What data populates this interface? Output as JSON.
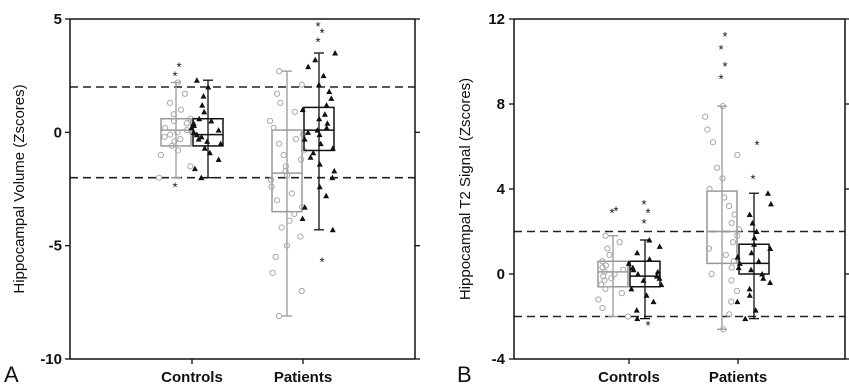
{
  "chart_data": [
    {
      "panel_label": "A",
      "type": "box",
      "ylabel": "Hippocampal Volume (Zscores)",
      "ylim": [
        -10,
        5
      ],
      "yticks": [
        -10,
        -5,
        0,
        5
      ],
      "reference_lines": [
        2,
        -2
      ],
      "categories": [
        "Controls",
        "Patients"
      ],
      "groups": [
        {
          "category": "Controls",
          "boxes": [
            {
              "marker": "circle",
              "color": "#aaaaaa",
              "q1": -0.6,
              "median": 0.1,
              "q3": 0.6,
              "whisker_low": -2.0,
              "whisker_high": 2.2,
              "outliers_high": [
                2.5,
                2.9
              ],
              "outliers_low": [
                -2.4
              ],
              "points": [
                -2.0,
                -1.5,
                -1.0,
                -0.8,
                -0.6,
                -0.4,
                -0.3,
                -0.2,
                -0.1,
                0.0,
                0.0,
                0.1,
                0.2,
                0.3,
                0.4,
                0.5,
                0.6,
                0.8,
                1.0,
                1.3,
                1.7,
                2.2
              ]
            },
            {
              "marker": "triangle",
              "color": "#111111",
              "q1": -0.6,
              "median": -0.1,
              "q3": 0.6,
              "whisker_low": -2.0,
              "whisker_high": 2.3,
              "outliers_high": [],
              "outliers_low": [],
              "points": [
                -2.0,
                -1.6,
                -1.2,
                -0.9,
                -0.7,
                -0.5,
                -0.4,
                -0.3,
                -0.2,
                -0.1,
                -0.1,
                0.0,
                0.1,
                0.2,
                0.3,
                0.4,
                0.5,
                0.6,
                0.9,
                1.2,
                1.6,
                2.0,
                2.3
              ]
            }
          ]
        },
        {
          "category": "Patients",
          "boxes": [
            {
              "marker": "circle",
              "color": "#aaaaaa",
              "q1": -3.5,
              "median": -1.8,
              "q3": 0.1,
              "whisker_low": -8.1,
              "whisker_high": 2.7,
              "outliers_high": [],
              "outliers_low": [],
              "points": [
                -8.1,
                -7.0,
                -6.2,
                -5.5,
                -5.0,
                -4.6,
                -4.2,
                -3.9,
                -3.6,
                -3.3,
                -3.0,
                -2.7,
                -2.4,
                -2.1,
                -1.9,
                -1.7,
                -1.5,
                -1.2,
                -1.0,
                -0.8,
                -0.5,
                -0.3,
                -0.1,
                0.2,
                0.5,
                0.9,
                1.3,
                1.7,
                2.1,
                2.7
              ]
            },
            {
              "marker": "triangle",
              "color": "#111111",
              "q1": -0.8,
              "median": 0.1,
              "q3": 1.1,
              "whisker_low": -4.3,
              "whisker_high": 3.5,
              "outliers_high": [
                4.0,
                4.4,
                4.7
              ],
              "outliers_low": [
                -5.7
              ],
              "points": [
                -4.3,
                -3.8,
                -3.3,
                -2.8,
                -2.4,
                -2.0,
                -1.7,
                -1.4,
                -1.1,
                -0.9,
                -0.7,
                -0.5,
                -0.3,
                -0.1,
                0.0,
                0.1,
                0.2,
                0.4,
                0.6,
                0.8,
                1.0,
                1.2,
                1.5,
                1.8,
                2.1,
                2.5,
                2.9,
                3.2,
                3.5
              ]
            }
          ]
        }
      ]
    },
    {
      "panel_label": "B",
      "type": "box",
      "ylabel": "Hippocampal T2 Signal (Zscores)",
      "ylim": [
        -4,
        12
      ],
      "yticks": [
        -4,
        0,
        4,
        8,
        12
      ],
      "reference_lines": [
        2,
        -2
      ],
      "categories": [
        "Controls",
        "Patients"
      ],
      "groups": [
        {
          "category": "Controls",
          "boxes": [
            {
              "marker": "circle",
              "color": "#aaaaaa",
              "q1": -0.6,
              "median": 0.1,
              "q3": 0.6,
              "whisker_low": -2.0,
              "whisker_high": 1.8,
              "outliers_high": [
                2.9,
                3.0
              ],
              "outliers_low": [],
              "points": [
                -2.0,
                -1.6,
                -1.2,
                -0.9,
                -0.7,
                -0.5,
                -0.3,
                -0.2,
                -0.1,
                0.0,
                0.1,
                0.2,
                0.3,
                0.4,
                0.6,
                0.9,
                1.2,
                1.5,
                1.8
              ]
            },
            {
              "marker": "triangle",
              "color": "#111111",
              "q1": -0.6,
              "median": -0.1,
              "q3": 0.6,
              "whisker_low": -2.1,
              "whisker_high": 1.6,
              "outliers_high": [
                2.4,
                2.9,
                3.3
              ],
              "outliers_low": [
                -2.4
              ],
              "points": [
                -2.1,
                -1.7,
                -1.3,
                -1.0,
                -0.7,
                -0.5,
                -0.3,
                -0.2,
                -0.1,
                0.0,
                0.1,
                0.2,
                0.3,
                0.5,
                0.7,
                1.0,
                1.3,
                1.6
              ]
            }
          ]
        },
        {
          "category": "Patients",
          "boxes": [
            {
              "marker": "circle",
              "color": "#aaaaaa",
              "q1": 0.5,
              "median": 2.0,
              "q3": 3.9,
              "whisker_low": -2.6,
              "whisker_high": 7.9,
              "outliers_high": [
                9.2,
                9.8,
                10.6,
                11.2
              ],
              "outliers_low": [],
              "points": [
                -2.6,
                -1.9,
                -1.3,
                -0.8,
                -0.3,
                0.0,
                0.3,
                0.6,
                0.9,
                1.2,
                1.5,
                1.8,
                2.1,
                2.4,
                2.8,
                3.2,
                3.6,
                4.0,
                4.5,
                5.0,
                5.6,
                6.2,
                6.8,
                7.4,
                7.9
              ]
            },
            {
              "marker": "triangle",
              "color": "#111111",
              "q1": 0.0,
              "median": 0.5,
              "q3": 1.4,
              "whisker_low": -2.1,
              "whisker_high": 3.8,
              "outliers_high": [
                4.5,
                6.1
              ],
              "outliers_low": [],
              "points": [
                -2.1,
                -1.7,
                -1.3,
                -1.0,
                -0.7,
                -0.4,
                -0.2,
                0.0,
                0.2,
                0.3,
                0.5,
                0.6,
                0.8,
                1.0,
                1.2,
                1.4,
                1.7,
                2.0,
                2.4,
                2.8,
                3.3,
                3.8
              ]
            }
          ]
        }
      ]
    }
  ]
}
